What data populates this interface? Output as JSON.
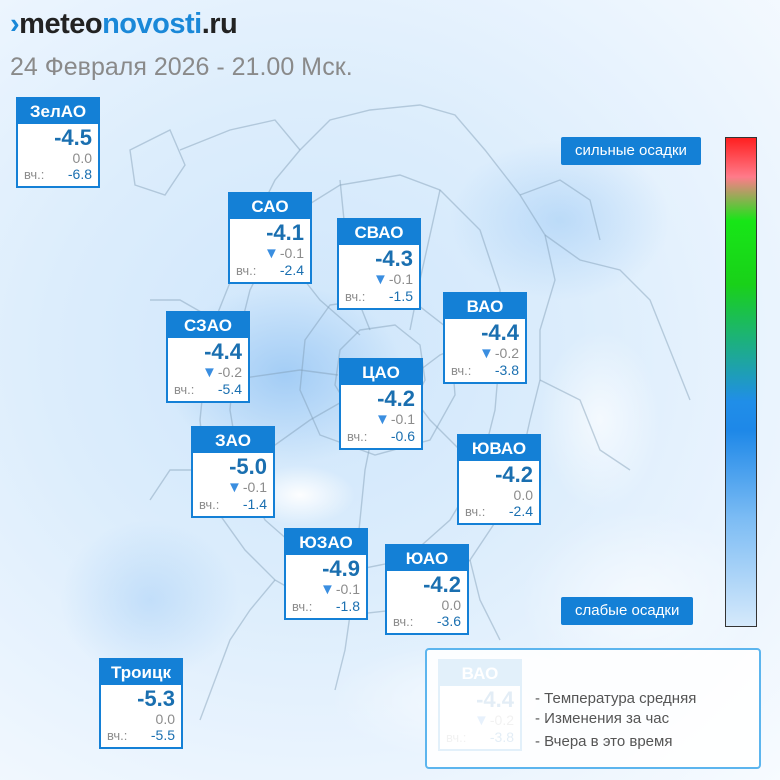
{
  "header": {
    "logo_part1": "meteo",
    "logo_part2": "novosti",
    "logo_part3": ".ru",
    "datetime": "24 Февраля 2026 - 21.00 Мск."
  },
  "yesterday_label": "вч.:",
  "colors": {
    "card_header": "#1480d6",
    "temperature": "#1a6fb0",
    "arrow_down": "#3a8ee0",
    "scale_top": "#ff2020",
    "scale_mid_green": "#17e617",
    "scale_mid_blue": "#1e88e8",
    "scale_bottom": "#d5e9fb"
  },
  "districts": [
    {
      "name": "ЗелАО",
      "temp": "-4.5",
      "change": "0.0",
      "change_dir": "none",
      "yesterday": "-6.8"
    },
    {
      "name": "САО",
      "temp": "-4.1",
      "change": "-0.1",
      "change_dir": "down",
      "yesterday": "-2.4"
    },
    {
      "name": "СВАО",
      "temp": "-4.3",
      "change": "-0.1",
      "change_dir": "down",
      "yesterday": "-1.5"
    },
    {
      "name": "ВАО",
      "temp": "-4.4",
      "change": "-0.2",
      "change_dir": "down",
      "yesterday": "-3.8"
    },
    {
      "name": "СЗАО",
      "temp": "-4.4",
      "change": "-0.2",
      "change_dir": "down",
      "yesterday": "-5.4"
    },
    {
      "name": "ЦАО",
      "temp": "-4.2",
      "change": "-0.1",
      "change_dir": "down",
      "yesterday": "-0.6"
    },
    {
      "name": "ЗАО",
      "temp": "-5.0",
      "change": "-0.1",
      "change_dir": "down",
      "yesterday": "-1.4"
    },
    {
      "name": "ЮВАО",
      "temp": "-4.2",
      "change": "0.0",
      "change_dir": "none",
      "yesterday": "-2.4"
    },
    {
      "name": "ЮЗАО",
      "temp": "-4.9",
      "change": "-0.1",
      "change_dir": "down",
      "yesterday": "-1.8"
    },
    {
      "name": "ЮАО",
      "temp": "-4.2",
      "change": "0.0",
      "change_dir": "none",
      "yesterday": "-3.6"
    },
    {
      "name": "Троицк",
      "temp": "-5.3",
      "change": "0.0",
      "change_dir": "none",
      "yesterday": "-5.5"
    }
  ],
  "scale": {
    "heavy_label": "сильные осадки",
    "light_label": "слабые осадки"
  },
  "legend": {
    "sample": {
      "name": "ВАО",
      "temp": "-4.4",
      "change": "-0.2",
      "change_dir": "down",
      "yesterday": "-3.8"
    },
    "line1": "- Температура средняя",
    "line2": "- Изменения за час",
    "line3": "- Вчера в это время"
  }
}
